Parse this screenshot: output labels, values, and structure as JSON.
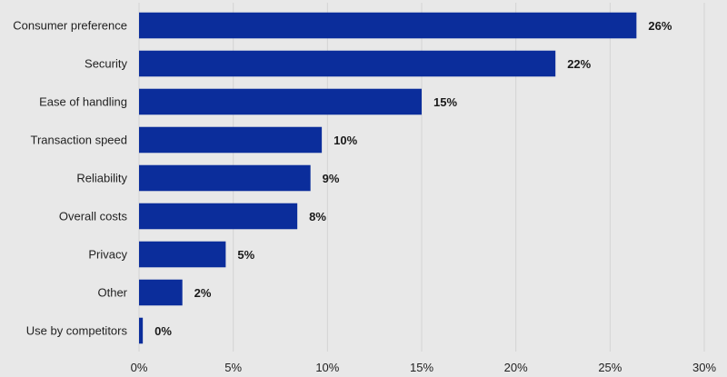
{
  "chart_data": {
    "type": "bar",
    "orientation": "horizontal",
    "categories": [
      "Consumer preference",
      "Security",
      "Ease of handling",
      "Transaction speed",
      "Reliability",
      "Overall costs",
      "Privacy",
      "Other",
      "Use by competitors"
    ],
    "values": [
      26.4,
      22.1,
      15.0,
      9.7,
      9.1,
      8.4,
      4.6,
      2.3,
      0.2
    ],
    "data_labels": [
      "26%",
      "22%",
      "15%",
      "10%",
      "9%",
      "8%",
      "5%",
      "2%",
      "0%"
    ],
    "xlim": [
      0,
      30
    ],
    "xticks": [
      0,
      5,
      10,
      15,
      20,
      25,
      30
    ],
    "xtick_labels": [
      "0%",
      "5%",
      "10%",
      "15%",
      "20%",
      "25%",
      "30%"
    ],
    "title": "",
    "xlabel": "",
    "ylabel": "",
    "grid": "vertical",
    "legend": "none",
    "bar_color": "#0b2d9b",
    "background_color": "#e8e8e8"
  }
}
